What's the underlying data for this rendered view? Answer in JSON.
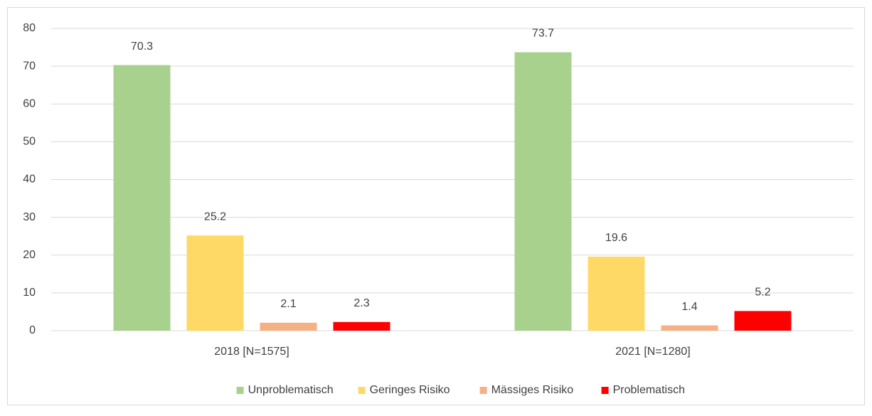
{
  "chart_data": {
    "type": "bar",
    "categories": [
      "2018 [N=1575]",
      "2021 [N=1280]"
    ],
    "series": [
      {
        "name": "Unproblematisch",
        "color": "#a9d18e",
        "values": [
          70.3,
          73.7
        ]
      },
      {
        "name": "Geringes Risiko",
        "color": "#ffd966",
        "values": [
          25.2,
          19.6
        ]
      },
      {
        "name": "Mässiges Risiko",
        "color": "#f4b183",
        "values": [
          2.1,
          1.4
        ]
      },
      {
        "name": "Problematisch",
        "color": "#ff0000",
        "values": [
          2.3,
          5.2
        ]
      }
    ],
    "ylim": [
      0,
      80
    ],
    "yticks": [
      0,
      10,
      20,
      30,
      40,
      50,
      60,
      70,
      80
    ],
    "grid": true,
    "legend": "bottom"
  }
}
